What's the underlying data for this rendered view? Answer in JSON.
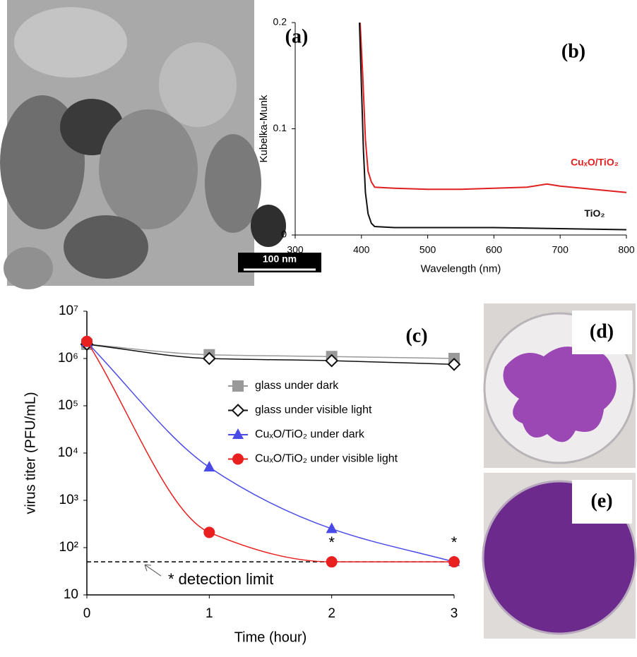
{
  "panels": {
    "a": {
      "label": "(a)",
      "scale_bar": "100 nm"
    },
    "d": {
      "label": "(d)"
    },
    "e": {
      "label": "(e)"
    }
  },
  "chart_data": [
    {
      "type": "line",
      "panel_label": "(b)",
      "xlabel": "Wavelength (nm)",
      "ylabel": "Kubelka-Munk",
      "xlim": [
        300,
        800
      ],
      "ylim": [
        0,
        0.2
      ],
      "xticks": [
        300,
        400,
        500,
        600,
        700,
        800
      ],
      "yticks": [
        0,
        0.1,
        0.2
      ],
      "series": [
        {
          "name": "CuₓO/TiO₂",
          "color": "#e02020",
          "x": [
            398,
            402,
            406,
            410,
            415,
            420,
            450,
            500,
            550,
            600,
            650,
            680,
            700,
            750,
            800
          ],
          "values": [
            0.2,
            0.15,
            0.09,
            0.06,
            0.05,
            0.045,
            0.044,
            0.043,
            0.043,
            0.044,
            0.045,
            0.048,
            0.046,
            0.043,
            0.04
          ]
        },
        {
          "name": "TiO₂",
          "color": "#111111",
          "x": [
            397,
            400,
            403,
            406,
            410,
            415,
            420,
            450,
            500,
            600,
            700,
            800
          ],
          "values": [
            0.2,
            0.14,
            0.08,
            0.04,
            0.02,
            0.011,
            0.008,
            0.007,
            0.007,
            0.007,
            0.006,
            0.005
          ]
        }
      ]
    },
    {
      "type": "line",
      "panel_label": "(c)",
      "xlabel": "Time (hour)",
      "ylabel": "virus titer (PFU/mL)",
      "log_y": true,
      "xlim": [
        0,
        3
      ],
      "ylim": [
        10,
        10000000
      ],
      "xticks": [
        0,
        1,
        2,
        3
      ],
      "yticks": [
        10,
        {
          "value": 100,
          "label": "10²"
        },
        {
          "value": 1000,
          "label": "10³"
        },
        {
          "value": 10000,
          "label": "10⁴"
        },
        {
          "value": 100000,
          "label": "10⁵"
        },
        {
          "value": 1000000,
          "label": "10⁶"
        },
        {
          "value": 10000000,
          "label": "10⁷"
        }
      ],
      "legend": "upper center",
      "detection_limit": 50,
      "detection_label": "* detection limit",
      "annotations": [
        {
          "text": "*",
          "x": 2,
          "y": 50
        },
        {
          "text": "*",
          "x": 3,
          "y": 50
        }
      ],
      "series": [
        {
          "name": "glass under dark",
          "color": "#999999",
          "marker": "square",
          "x": [
            0,
            1,
            2,
            3
          ],
          "values": [
            2000000,
            1200000,
            1100000,
            1000000
          ]
        },
        {
          "name": "glass under visible light",
          "color": "#111111",
          "marker": "diamond",
          "x": [
            0,
            1,
            2,
            3
          ],
          "values": [
            2000000,
            1000000,
            900000,
            750000
          ]
        },
        {
          "name": "CuₓO/TiO₂ under dark",
          "color": "#4a4ae8",
          "marker": "triangle",
          "x": [
            0,
            1,
            2,
            3
          ],
          "values": [
            2200000,
            5000,
            250,
            50
          ]
        },
        {
          "name": "CuₓO/TiO₂ under visible light",
          "color": "#e82020",
          "marker": "circle",
          "x": [
            0,
            1,
            2,
            3
          ],
          "values": [
            2300000,
            210,
            50,
            50
          ]
        }
      ]
    }
  ]
}
